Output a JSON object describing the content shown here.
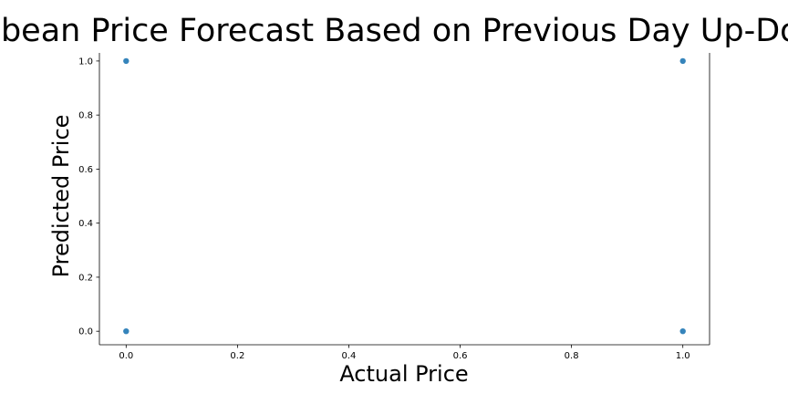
{
  "chart_data": {
    "type": "scatter",
    "title": "Soybean Price Forecast Based on Previous Day Up-Down",
    "xlabel": "Actual Price",
    "ylabel": "Predicted Price",
    "xlim": [
      -0.048,
      1.048
    ],
    "ylim": [
      -0.05,
      1.03
    ],
    "xticks": [
      0.0,
      0.2,
      0.4,
      0.6,
      0.8,
      1.0
    ],
    "xtick_labels": [
      "0.0",
      "0.2",
      "0.4",
      "0.6",
      "0.8",
      "1.0"
    ],
    "yticks": [
      0.0,
      0.2,
      0.4,
      0.6,
      0.8,
      1.0
    ],
    "ytick_labels": [
      "0.0",
      "0.2",
      "0.4",
      "0.6",
      "0.8",
      "1.0"
    ],
    "grid": false,
    "spines": [
      "left",
      "bottom",
      "right"
    ],
    "series": [
      {
        "color": "#1f77b4",
        "x": [
          0,
          0,
          1,
          1
        ],
        "y": [
          1,
          0,
          1,
          0
        ]
      }
    ]
  }
}
